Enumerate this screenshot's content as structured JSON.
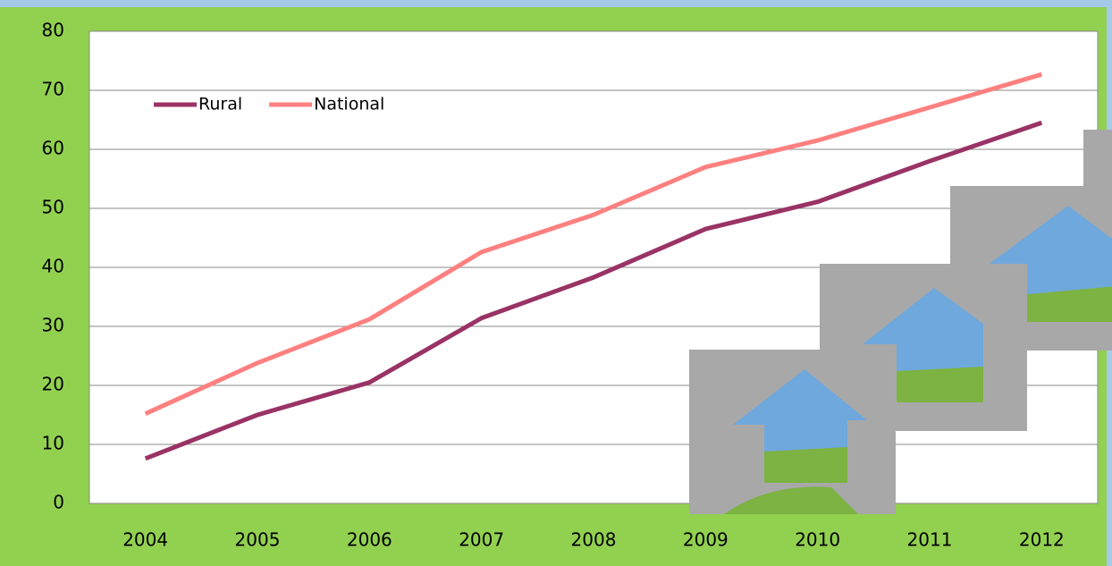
{
  "chart_data": {
    "type": "line",
    "categories": [
      "2004",
      "2005",
      "2006",
      "2007",
      "2008",
      "2009",
      "2010",
      "2011",
      "2012"
    ],
    "series": [
      {
        "name": "Rural",
        "color": "#993366",
        "values": [
          7.6,
          15.0,
          20.5,
          31.4,
          38.3,
          46.5,
          51.1,
          58.0,
          64.5
        ]
      },
      {
        "name": "National",
        "color": "#ff8080",
        "values": [
          15.2,
          23.8,
          31.2,
          42.6,
          48.9,
          57.0,
          61.5,
          67.1,
          72.7
        ]
      }
    ],
    "ylim": [
      0,
      80
    ],
    "yticks": [
      0,
      10,
      20,
      30,
      40,
      50,
      60,
      70,
      80
    ],
    "grid": true,
    "legend": "top-left"
  }
}
